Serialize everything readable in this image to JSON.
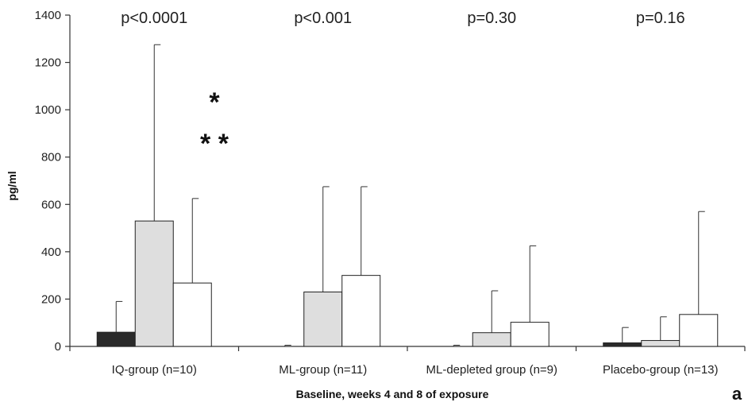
{
  "chart_data": {
    "type": "bar",
    "ylabel": "pg/ml",
    "xlabel": "Baseline, weeks 4 and 8 of exposure",
    "ylim": [
      0,
      1400
    ],
    "yticks": [
      "0",
      "200",
      "400",
      "600",
      "800",
      "1000",
      "1200",
      "1400"
    ],
    "ytick_values": [
      0,
      200,
      400,
      600,
      800,
      1000,
      1200,
      1400
    ],
    "categories": [
      "IQ-group (n=10)",
      "ML-group (n=11)",
      "ML-depleted group (n=9)",
      "Placebo-group (n=13)"
    ],
    "p_values": [
      "p<0.0001",
      "p<0.001",
      "p=0.30",
      "p=0.16"
    ],
    "series": [
      {
        "values": [
          60,
          0,
          0,
          15
        ],
        "error_upper": [
          190,
          5,
          5,
          80
        ],
        "color": "#2a2a2a"
      },
      {
        "values": [
          530,
          230,
          58,
          25
        ],
        "error_upper": [
          1275,
          675,
          235,
          125
        ],
        "color": "#dedede"
      },
      {
        "values": [
          268,
          300,
          102,
          135
        ],
        "error_upper": [
          625,
          675,
          425,
          570
        ],
        "color": "#ffffff"
      }
    ],
    "annotations": [
      "*",
      "* *"
    ],
    "panel_label": "a",
    "grid": false
  }
}
